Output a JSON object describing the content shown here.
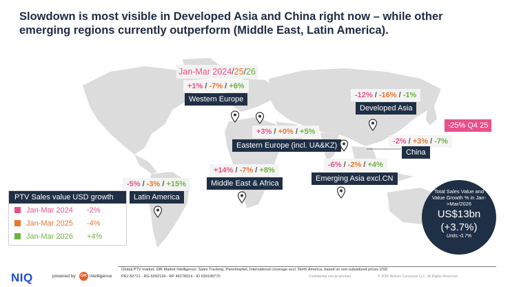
{
  "title": "Slowdown is most visible in Developed Asia and China right now – while other emerging regions currently outperform (Middle East, Latin America).",
  "period_legend": {
    "prefix": "Jan-Mar 2024",
    "sep1": "/",
    "y25": "25",
    "sep2": "/",
    "y26": "26"
  },
  "colors": {
    "y2024": "#e8508a",
    "y2025": "#e8772e",
    "y2026": "#6db33f",
    "navy": "#1f2f45"
  },
  "regions": [
    {
      "name": "Western Europe",
      "g24": "+1%",
      "g25": "-7%",
      "g26": "+6%"
    },
    {
      "name": "Developed Asia",
      "g24": "-12%",
      "g25": "-16%",
      "g26": "-1%"
    },
    {
      "name": "Eastern Europe (incl. UA&KZ)",
      "g24": "+3%",
      "g25": "+0%",
      "g26": "+5%"
    },
    {
      "name": "China",
      "g24": "-2%",
      "g25": "+3%",
      "g26": "-7%"
    },
    {
      "name": "Emerging Asia excl.CN",
      "g24": "-6%",
      "g25": "-2%",
      "g26": "+4%"
    },
    {
      "name": "Middle East & Africa",
      "g24": "+14%",
      "g25": "-7%",
      "g26": "+8%"
    },
    {
      "name": "Latin America",
      "g24": "-5%",
      "g25": "-3%",
      "g26": "+15%"
    }
  ],
  "sep": "/",
  "china_q4": "-25% Q4 25",
  "legend": {
    "heading": "PTV Sales value USD growth",
    "rows": [
      {
        "label": "Jan-Mar 2024",
        "value": "-2%"
      },
      {
        "label": "Jan-Mar 2025",
        "value": "-4%"
      },
      {
        "label": "Jan-Mar 2026",
        "value": "+4%"
      }
    ]
  },
  "total": {
    "line1": "Total Sales Value and Value Growth % in Jan->Mar/2026",
    "value": "US$13bn",
    "growth": "(+3.7%)",
    "units": "Units:-0.7%"
  },
  "footer": {
    "brand": "NIQ",
    "powered_by": "powered by",
    "gfk": "GfK",
    "intelligence": "intelligence",
    "source_line1": "Global PTV market; GfK Market Intelligence: Sales Tracking, Panelmarket, International coverage excl. North America, based on non-subsidized prices USD",
    "source_line2": "PRJ 82721 - RG 6092134 - RP 46278014 - ID 639108770",
    "confidential": "Confidential and proprietary",
    "copyright": "© 2026 Nielsen Consumer LLC. All Rights Reserved."
  }
}
